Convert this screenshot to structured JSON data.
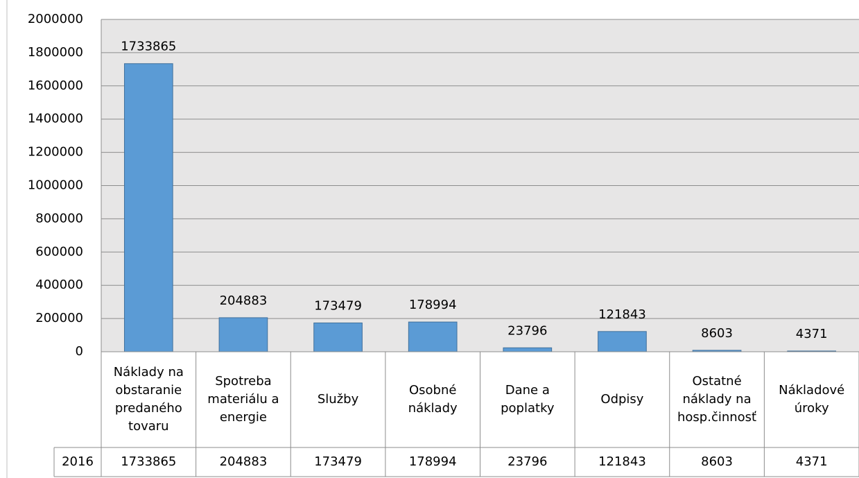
{
  "chart_data": {
    "type": "bar",
    "categories": [
      "Náklady na obstaranie predaného tovaru",
      "Spotreba materiálu a energie",
      "Služby",
      "Osobné náklady",
      "Dane a poplatky",
      "Odpisy",
      "Ostatné náklady na hosp.činnosť",
      "Nákladové úroky"
    ],
    "series": [
      {
        "name": "2016",
        "color": "#5b9bd5",
        "values": [
          1733865,
          204883,
          173479,
          178994,
          23796,
          121843,
          8603,
          4371
        ]
      }
    ],
    "ylim": [
      0,
      2000000
    ],
    "yticks": [
      0,
      200000,
      400000,
      600000,
      800000,
      1000000,
      1200000,
      1400000,
      1600000,
      1800000,
      2000000
    ],
    "grid": true
  }
}
